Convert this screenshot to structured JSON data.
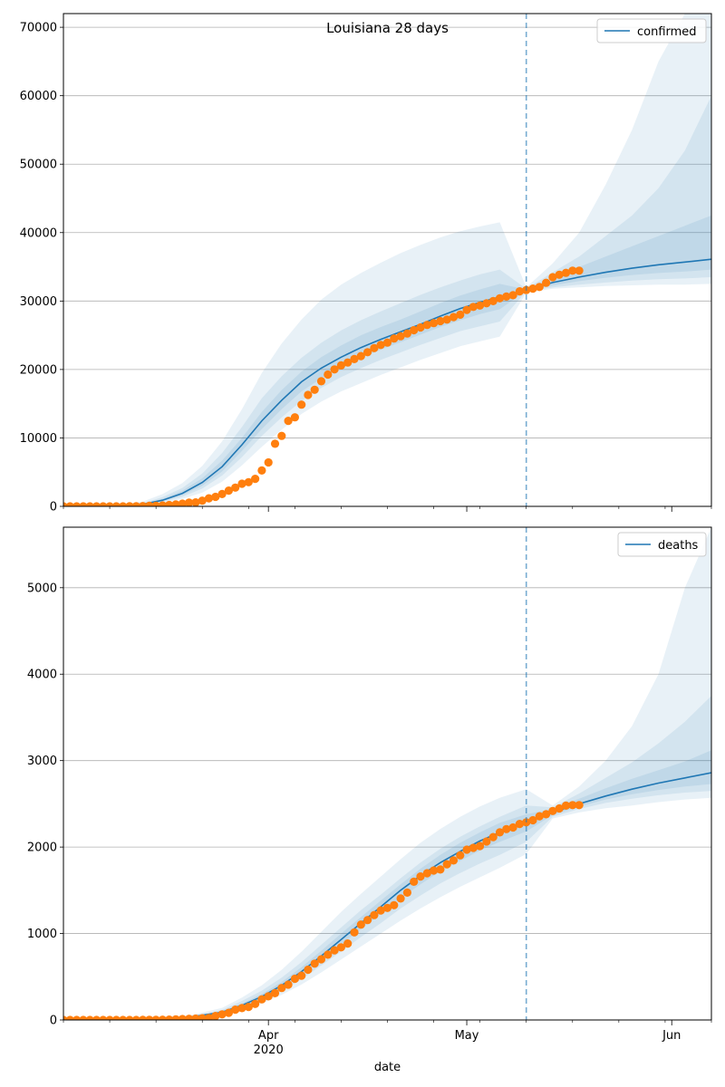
{
  "chart_data": [
    {
      "type": "line",
      "title": "Louisiana 28 days",
      "xlabel": "",
      "ylabel": "",
      "x_range": [
        "2020-03-01",
        "2020-06-07"
      ],
      "ylim": [
        0,
        72000
      ],
      "y_ticks": [
        0,
        10000,
        20000,
        30000,
        40000,
        50000,
        60000,
        70000
      ],
      "grid": "y",
      "legend": {
        "placement": "top-right",
        "label": "confirmed"
      },
      "forecast_start": "2020-05-10",
      "colors": {
        "line": "#1f77b4",
        "observed": "#ff7f0e",
        "band": "#1f77b4"
      },
      "model": {
        "x": [
          "2020-03-01",
          "2020-03-08",
          "2020-03-13",
          "2020-03-16",
          "2020-03-19",
          "2020-03-22",
          "2020-03-25",
          "2020-03-28",
          "2020-03-31",
          "2020-04-03",
          "2020-04-06",
          "2020-04-09",
          "2020-04-12",
          "2020-04-15",
          "2020-04-18",
          "2020-04-21",
          "2020-04-24",
          "2020-04-27",
          "2020-04-30",
          "2020-05-03",
          "2020-05-06",
          "2020-05-10",
          "2020-05-14",
          "2020-05-18",
          "2020-05-22",
          "2020-05-26",
          "2020-05-30",
          "2020-06-03",
          "2020-06-07"
        ],
        "median": [
          0,
          30,
          300,
          900,
          1900,
          3500,
          5800,
          9000,
          12500,
          15500,
          18200,
          20200,
          21800,
          23200,
          24400,
          25500,
          26600,
          27800,
          28900,
          29800,
          30600,
          31600,
          32700,
          33500,
          34200,
          34800,
          35300,
          35700,
          36100
        ],
        "bands": [
          {
            "lower": [
              0,
              15,
              150,
              500,
              1100,
              2000,
              3600,
              6000,
              8700,
              11200,
              13500,
              15300,
              16800,
              18000,
              19200,
              20300,
              21400,
              22400,
              23400,
              24100,
              24800,
              31200,
              31800,
              32000,
              32200,
              32300,
              32400,
              32400,
              32500
            ],
            "upper": [
              0,
              90,
              700,
              1800,
              3400,
              5900,
              9500,
              14200,
              19500,
              23800,
              27300,
              30200,
              32400,
              34100,
              35600,
              37000,
              38200,
              39300,
              40200,
              40900,
              41500,
              32000,
              35500,
              40000,
              47000,
              55000,
              65000,
              72000,
              72000
            ]
          },
          {
            "lower": [
              0,
              20,
              200,
              650,
              1400,
              2600,
              4500,
              7200,
              10300,
              13000,
              15400,
              17300,
              18900,
              20200,
              21400,
              22500,
              23600,
              24600,
              25600,
              26300,
              27000,
              31400,
              32000,
              32400,
              32700,
              33000,
              33200,
              33300,
              33500
            ],
            "upper": [
              0,
              60,
              480,
              1350,
              2700,
              4800,
              7800,
              11600,
              15800,
              19000,
              21700,
              23900,
              25700,
              27200,
              28500,
              29700,
              30900,
              32000,
              33000,
              33900,
              34600,
              31800,
              34200,
              36500,
              39500,
              42500,
              46500,
              52000,
              60000
            ]
          },
          {
            "lower": [
              0,
              25,
              250,
              760,
              1650,
              3000,
              5100,
              8100,
              11300,
              14200,
              16800,
              18700,
              20300,
              21700,
              22900,
              24000,
              25100,
              26200,
              27200,
              28100,
              28800,
              31500,
              32300,
              32900,
              33400,
              33800,
              34100,
              34300,
              34600
            ],
            "upper": [
              0,
              40,
              380,
              1100,
              2300,
              4100,
              6700,
              10000,
              13800,
              17000,
              19700,
              21800,
              23500,
              25000,
              26200,
              27300,
              28500,
              29700,
              30800,
              31700,
              32500,
              31700,
              33400,
              35000,
              36500,
              38000,
              39500,
              41000,
              42500
            ]
          }
        ]
      },
      "observed": {
        "x": [
          "2020-03-01",
          "2020-03-02",
          "2020-03-03",
          "2020-03-04",
          "2020-03-05",
          "2020-03-06",
          "2020-03-07",
          "2020-03-08",
          "2020-03-09",
          "2020-03-10",
          "2020-03-11",
          "2020-03-12",
          "2020-03-13",
          "2020-03-14",
          "2020-03-15",
          "2020-03-16",
          "2020-03-17",
          "2020-03-18",
          "2020-03-19",
          "2020-03-20",
          "2020-03-21",
          "2020-03-22",
          "2020-03-23",
          "2020-03-24",
          "2020-03-25",
          "2020-03-26",
          "2020-03-27",
          "2020-03-28",
          "2020-03-29",
          "2020-03-30",
          "2020-03-31",
          "2020-04-01",
          "2020-04-02",
          "2020-04-03",
          "2020-04-04",
          "2020-04-05",
          "2020-04-06",
          "2020-04-07",
          "2020-04-08",
          "2020-04-09",
          "2020-04-10",
          "2020-04-11",
          "2020-04-12",
          "2020-04-13",
          "2020-04-14",
          "2020-04-15",
          "2020-04-16",
          "2020-04-17",
          "2020-04-18",
          "2020-04-19",
          "2020-04-20",
          "2020-04-21",
          "2020-04-22",
          "2020-04-23",
          "2020-04-24",
          "2020-04-25",
          "2020-04-26",
          "2020-04-27",
          "2020-04-28",
          "2020-04-29",
          "2020-04-30",
          "2020-05-01",
          "2020-05-02",
          "2020-05-03",
          "2020-05-04",
          "2020-05-05",
          "2020-05-06",
          "2020-05-07",
          "2020-05-08",
          "2020-05-09",
          "2020-05-10",
          "2020-05-11",
          "2020-05-12",
          "2020-05-13",
          "2020-05-14",
          "2020-05-15",
          "2020-05-16",
          "2020-05-17",
          "2020-05-18"
        ],
        "y": [
          0,
          0,
          0,
          0,
          0,
          0,
          0,
          0,
          1,
          6,
          13,
          19,
          36,
          77,
          91,
          136,
          196,
          280,
          392,
          538,
          585,
          837,
          1172,
          1388,
          1795,
          2305,
          2746,
          3315,
          3540,
          4025,
          5237,
          6424,
          9150,
          10297,
          12496,
          13010,
          14867,
          16284,
          17030,
          18283,
          19253,
          20014,
          20595,
          21016,
          21518,
          21951,
          22532,
          23118,
          23580,
          23928,
          24523,
          24854,
          25258,
          25739,
          26140,
          26512,
          26773,
          27068,
          27286,
          27660,
          28001,
          28711,
          29140,
          29340,
          29673,
          29996,
          30399,
          30652,
          30855,
          31417,
          31600,
          31815,
          32050,
          32662,
          33489,
          33837,
          34117,
          34432,
          34432
        ]
      }
    },
    {
      "type": "line",
      "title": "",
      "xlabel": "date",
      "ylabel": "",
      "x_range": [
        "2020-03-01",
        "2020-06-07"
      ],
      "ylim": [
        0,
        5700
      ],
      "y_ticks": [
        0,
        1000,
        2000,
        3000,
        4000,
        5000
      ],
      "x_ticks": [
        {
          "date": "2020-04-01",
          "label": "Apr",
          "sublabel": "2020"
        },
        {
          "date": "2020-05-01",
          "label": "May",
          "sublabel": ""
        },
        {
          "date": "2020-06-01",
          "label": "Jun",
          "sublabel": ""
        }
      ],
      "grid": "y",
      "legend": {
        "placement": "top-right",
        "label": "deaths"
      },
      "forecast_start": "2020-05-10",
      "colors": {
        "line": "#1f77b4",
        "observed": "#ff7f0e",
        "band": "#1f77b4"
      },
      "model": {
        "x": [
          "2020-03-01",
          "2020-03-15",
          "2020-03-20",
          "2020-03-25",
          "2020-03-28",
          "2020-03-31",
          "2020-04-03",
          "2020-04-06",
          "2020-04-09",
          "2020-04-12",
          "2020-04-15",
          "2020-04-18",
          "2020-04-21",
          "2020-04-24",
          "2020-04-27",
          "2020-04-30",
          "2020-05-03",
          "2020-05-06",
          "2020-05-10",
          "2020-05-14",
          "2020-05-18",
          "2020-05-22",
          "2020-05-26",
          "2020-05-30",
          "2020-06-03",
          "2020-06-07"
        ],
        "median": [
          0,
          5,
          30,
          90,
          170,
          270,
          400,
          560,
          740,
          930,
          1120,
          1310,
          1500,
          1670,
          1820,
          1950,
          2070,
          2170,
          2280,
          2400,
          2500,
          2590,
          2670,
          2740,
          2800,
          2860
        ],
        "bands": [
          {
            "lower": [
              0,
              2,
              15,
              60,
              120,
              190,
              290,
              410,
              550,
              700,
              850,
              1000,
              1150,
              1290,
              1420,
              1540,
              1650,
              1760,
              1920,
              2330,
              2400,
              2450,
              2480,
              2520,
              2550,
              2570
            ],
            "upper": [
              0,
              10,
              50,
              140,
              260,
              400,
              580,
              790,
              1020,
              1250,
              1460,
              1660,
              1860,
              2050,
              2210,
              2350,
              2470,
              2570,
              2670,
              2480,
              2700,
              3000,
              3400,
              4000,
              5000,
              5700
            ]
          },
          {
            "lower": [
              0,
              3,
              20,
              70,
              140,
              220,
              330,
              470,
              630,
              790,
              960,
              1120,
              1290,
              1440,
              1580,
              1700,
              1810,
              1910,
              2060,
              2350,
              2440,
              2510,
              2560,
              2600,
              2630,
              2650
            ],
            "upper": [
              0,
              8,
              40,
              115,
              220,
              340,
              490,
              670,
              870,
              1070,
              1270,
              1450,
              1640,
              1820,
              1980,
              2120,
              2240,
              2350,
              2480,
              2460,
              2620,
              2800,
              2980,
              3200,
              3450,
              3750
            ]
          },
          {
            "lower": [
              0,
              4,
              25,
              80,
              155,
              245,
              365,
              515,
              690,
              870,
              1050,
              1230,
              1410,
              1570,
              1720,
              1840,
              1960,
              2060,
              2180,
              2370,
              2470,
              2550,
              2610,
              2660,
              2700,
              2730
            ],
            "upper": [
              0,
              6,
              35,
              100,
              190,
              300,
              440,
              610,
              800,
              1000,
              1190,
              1380,
              1570,
              1750,
              1910,
              2050,
              2170,
              2280,
              2380,
              2440,
              2560,
              2680,
              2790,
              2890,
              2990,
              3120
            ]
          }
        ]
      },
      "observed": {
        "x": [
          "2020-03-01",
          "2020-03-02",
          "2020-03-03",
          "2020-03-04",
          "2020-03-05",
          "2020-03-06",
          "2020-03-07",
          "2020-03-08",
          "2020-03-09",
          "2020-03-10",
          "2020-03-11",
          "2020-03-12",
          "2020-03-13",
          "2020-03-14",
          "2020-03-15",
          "2020-03-16",
          "2020-03-17",
          "2020-03-18",
          "2020-03-19",
          "2020-03-20",
          "2020-03-21",
          "2020-03-22",
          "2020-03-23",
          "2020-03-24",
          "2020-03-25",
          "2020-03-26",
          "2020-03-27",
          "2020-03-28",
          "2020-03-29",
          "2020-03-30",
          "2020-03-31",
          "2020-04-01",
          "2020-04-02",
          "2020-04-03",
          "2020-04-04",
          "2020-04-05",
          "2020-04-06",
          "2020-04-07",
          "2020-04-08",
          "2020-04-09",
          "2020-04-10",
          "2020-04-11",
          "2020-04-12",
          "2020-04-13",
          "2020-04-14",
          "2020-04-15",
          "2020-04-16",
          "2020-04-17",
          "2020-04-18",
          "2020-04-19",
          "2020-04-20",
          "2020-04-21",
          "2020-04-22",
          "2020-04-23",
          "2020-04-24",
          "2020-04-25",
          "2020-04-26",
          "2020-04-27",
          "2020-04-28",
          "2020-04-29",
          "2020-04-30",
          "2020-05-01",
          "2020-05-02",
          "2020-05-03",
          "2020-05-04",
          "2020-05-05",
          "2020-05-06",
          "2020-05-07",
          "2020-05-08",
          "2020-05-09",
          "2020-05-10",
          "2020-05-11",
          "2020-05-12",
          "2020-05-13",
          "2020-05-14",
          "2020-05-15",
          "2020-05-16",
          "2020-05-17",
          "2020-05-18"
        ],
        "y": [
          0,
          0,
          0,
          0,
          0,
          0,
          0,
          0,
          0,
          0,
          0,
          0,
          1,
          2,
          2,
          3,
          4,
          7,
          10,
          14,
          16,
          20,
          22,
          46,
          65,
          83,
          119,
          137,
          151,
          185,
          239,
          273,
          310,
          370,
          409,
          477,
          512,
          582,
          652,
          702,
          755,
          806,
          840,
          884,
          1013,
          1103,
          1156,
          1213,
          1267,
          1296,
          1328,
          1405,
          1473,
          1599,
          1660,
          1697,
          1729,
          1740,
          1801,
          1845,
          1905,
          1970,
          1991,
          2012,
          2064,
          2115,
          2170,
          2208,
          2227,
          2267,
          2286,
          2310,
          2356,
          2380,
          2417,
          2447,
          2479,
          2485,
          2485
        ]
      }
    }
  ]
}
